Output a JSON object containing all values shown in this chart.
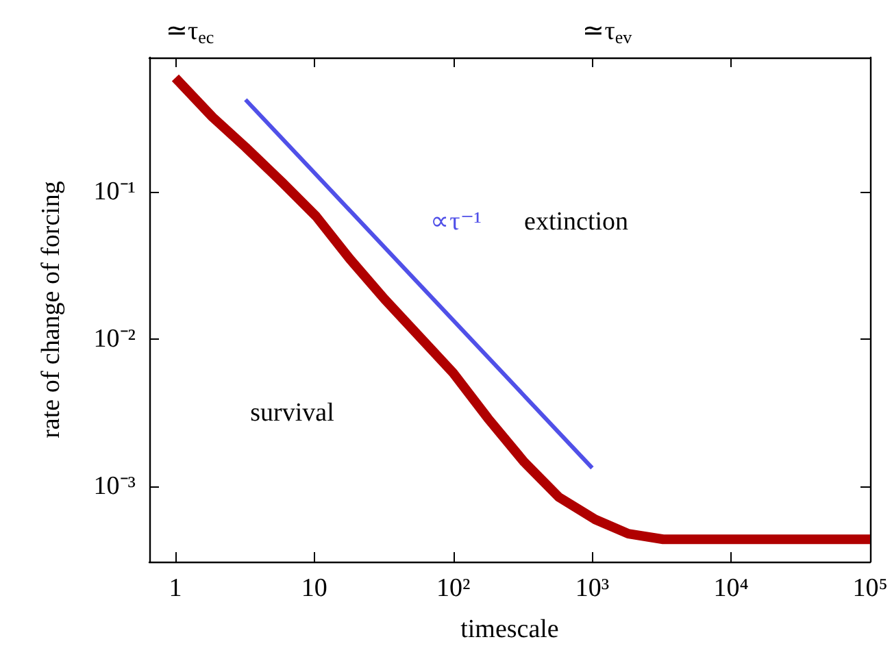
{
  "chart_data": {
    "type": "line",
    "xlabel": "timescale",
    "ylabel": "rate of change of forcing",
    "log": "xy",
    "grid": false,
    "marker": "none",
    "line_style": "solid",
    "xlim": [
      0.65,
      100000
    ],
    "ylim": [
      0.00031,
      0.81
    ],
    "xticks": [
      1,
      10,
      {
        "value": 100,
        "label": "10²"
      },
      {
        "value": 1000,
        "label": "10³"
      },
      {
        "value": 10000,
        "label": "10⁴"
      },
      {
        "value": 100000,
        "label": "10⁵"
      }
    ],
    "yticks": [
      {
        "value": 0.1,
        "label": "10⁻¹"
      },
      {
        "value": 0.01,
        "label": "10⁻²"
      },
      {
        "value": 0.001,
        "label": "10⁻³"
      }
    ],
    "series": [
      {
        "color": "#b00000",
        "x": [
          1,
          1.85,
          3.2,
          5.9,
          10.3,
          18,
          32,
          100,
          178,
          324,
          575,
          1050,
          1820,
          3240,
          100000
        ],
        "values": [
          0.59,
          0.32,
          0.2,
          0.115,
          0.068,
          0.035,
          0.0187,
          0.0059,
          0.0029,
          0.00147,
          0.00085,
          0.0006,
          0.00048,
          0.00044,
          0.00044
        ]
      },
      {
        "color": "#5050e8",
        "x": [
          3.2,
          1000
        ],
        "values": [
          0.42,
          0.00134
        ]
      }
    ],
    "annotations": [
      {
        "text": "≃τ$_{ec}$",
        "x": 1
      },
      {
        "text": "≃τ$_{ev}$",
        "x": 1000
      },
      "∝τ⁻¹",
      "extinction",
      "survival"
    ]
  }
}
